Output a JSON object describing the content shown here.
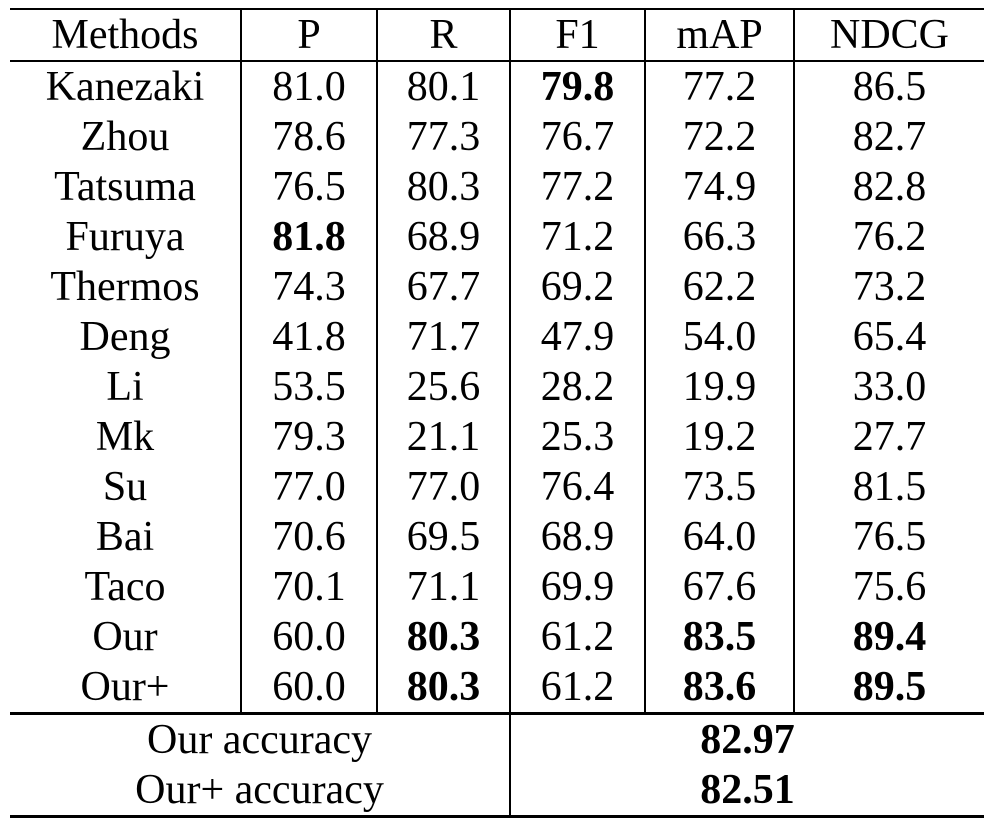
{
  "chart_data": {
    "type": "table",
    "columns": [
      "Methods",
      "P",
      "R",
      "F1",
      "mAP",
      "NDCG"
    ],
    "rows": [
      {
        "method": "Kanezaki",
        "values": [
          "81.0",
          "80.1",
          "79.8",
          "77.2",
          "86.5"
        ],
        "bold": [
          false,
          false,
          true,
          false,
          false
        ]
      },
      {
        "method": "Zhou",
        "values": [
          "78.6",
          "77.3",
          "76.7",
          "72.2",
          "82.7"
        ],
        "bold": [
          false,
          false,
          false,
          false,
          false
        ]
      },
      {
        "method": "Tatsuma",
        "values": [
          "76.5",
          "80.3",
          "77.2",
          "74.9",
          "82.8"
        ],
        "bold": [
          false,
          false,
          false,
          false,
          false
        ]
      },
      {
        "method": "Furuya",
        "values": [
          "81.8",
          "68.9",
          "71.2",
          "66.3",
          "76.2"
        ],
        "bold": [
          true,
          false,
          false,
          false,
          false
        ]
      },
      {
        "method": "Thermos",
        "values": [
          "74.3",
          "67.7",
          "69.2",
          "62.2",
          "73.2"
        ],
        "bold": [
          false,
          false,
          false,
          false,
          false
        ]
      },
      {
        "method": "Deng",
        "values": [
          "41.8",
          "71.7",
          "47.9",
          "54.0",
          "65.4"
        ],
        "bold": [
          false,
          false,
          false,
          false,
          false
        ]
      },
      {
        "method": "Li",
        "values": [
          "53.5",
          "25.6",
          "28.2",
          "19.9",
          "33.0"
        ],
        "bold": [
          false,
          false,
          false,
          false,
          false
        ]
      },
      {
        "method": "Mk",
        "values": [
          "79.3",
          "21.1",
          "25.3",
          "19.2",
          "27.7"
        ],
        "bold": [
          false,
          false,
          false,
          false,
          false
        ]
      },
      {
        "method": "Su",
        "values": [
          "77.0",
          "77.0",
          "76.4",
          "73.5",
          "81.5"
        ],
        "bold": [
          false,
          false,
          false,
          false,
          false
        ]
      },
      {
        "method": "Bai",
        "values": [
          "70.6",
          "69.5",
          "68.9",
          "64.0",
          "76.5"
        ],
        "bold": [
          false,
          false,
          false,
          false,
          false
        ]
      },
      {
        "method": "Taco",
        "values": [
          "70.1",
          "71.1",
          "69.9",
          "67.6",
          "75.6"
        ],
        "bold": [
          false,
          false,
          false,
          false,
          false
        ]
      },
      {
        "method": "Our",
        "values": [
          "60.0",
          "80.3",
          "61.2",
          "83.5",
          "89.4"
        ],
        "bold": [
          false,
          true,
          false,
          true,
          true
        ]
      },
      {
        "method": "Our+",
        "values": [
          "60.0",
          "80.3",
          "61.2",
          "83.6",
          "89.5"
        ],
        "bold": [
          false,
          true,
          false,
          true,
          true
        ]
      }
    ],
    "accuracy": [
      {
        "label": "Our accuracy",
        "value": "82.97"
      },
      {
        "label": "Our+ accuracy",
        "value": "82.51"
      }
    ]
  }
}
